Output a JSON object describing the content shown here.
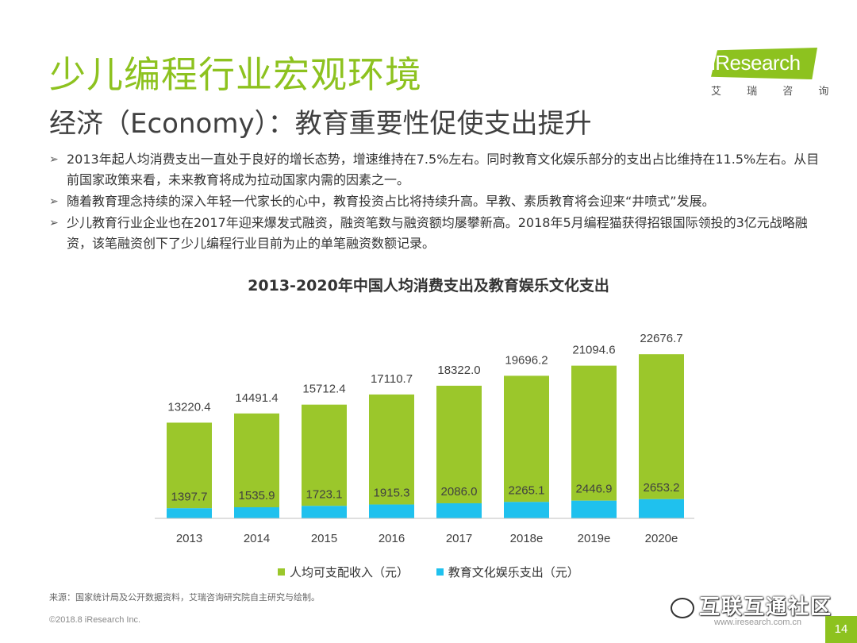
{
  "header": {
    "title": "少儿编程行业宏观环境",
    "subtitle": "经济（Economy）：教育重要性促使支出提升"
  },
  "logo": {
    "text": "iResearch",
    "cn": "艾 瑞 咨 询"
  },
  "bullets": [
    "2013年起人均消费支出一直处于良好的增长态势，增速维持在7.5%左右。同时教育文化娱乐部分的支出占比维持在11.5%左右。从目前国家政策来看，未来教育将成为拉动国家内需的因素之一。",
    "随着教育理念持续的深入年轻一代家长的心中，教育投资占比将持续升高。早教、素质教育将会迎来“井喷式”发展。",
    "少儿教育行业企业也在2017年迎来爆发式融资，融资笔数与融资额均屡攀新高。2018年5月编程猫获得招银国际领投的3亿元战略融资，该笔融资创下了少儿编程行业目前为止的单笔融资数额记录。"
  ],
  "chart_data": {
    "type": "bar",
    "stacked": true,
    "title": "2013-2020年中国人均消费支出及教育娱乐文化支出",
    "categories": [
      "2013",
      "2014",
      "2015",
      "2016",
      "2017",
      "2018e",
      "2019e",
      "2020e"
    ],
    "series": [
      {
        "name": "人均可支配收入（元）",
        "color": "#9BC72B",
        "values": [
          13220.4,
          14491.4,
          15712.4,
          17110.7,
          18322.0,
          19696.2,
          21094.6,
          22676.7
        ],
        "labels": [
          "13220.4",
          "14491.4",
          "15712.4",
          "17110.7",
          "18322.0",
          "19696.2",
          "21094.6",
          "22676.7"
        ]
      },
      {
        "name": "教育文化娱乐支出（元）",
        "color": "#1FC1EE",
        "values": [
          1397.7,
          1535.9,
          1723.1,
          1915.3,
          2086.0,
          2265.1,
          2446.9,
          2653.2
        ],
        "labels": [
          "1397.7",
          "1535.9",
          "1723.1",
          "1915.3",
          "2086.0",
          "2265.1",
          "2446.9",
          "2653.2"
        ]
      }
    ],
    "ylim": [
      0,
      25000
    ],
    "grid": false,
    "legend": "bottom"
  },
  "footer": {
    "source": "来源：国家统计局及公开数据资料，艾瑞咨询研究院自主研究与绘制。",
    "copyright": "©2018.8  iResearch Inc.",
    "website": "www.iresearch.com.cn",
    "page": "14",
    "watermark": "互联互通社区"
  }
}
